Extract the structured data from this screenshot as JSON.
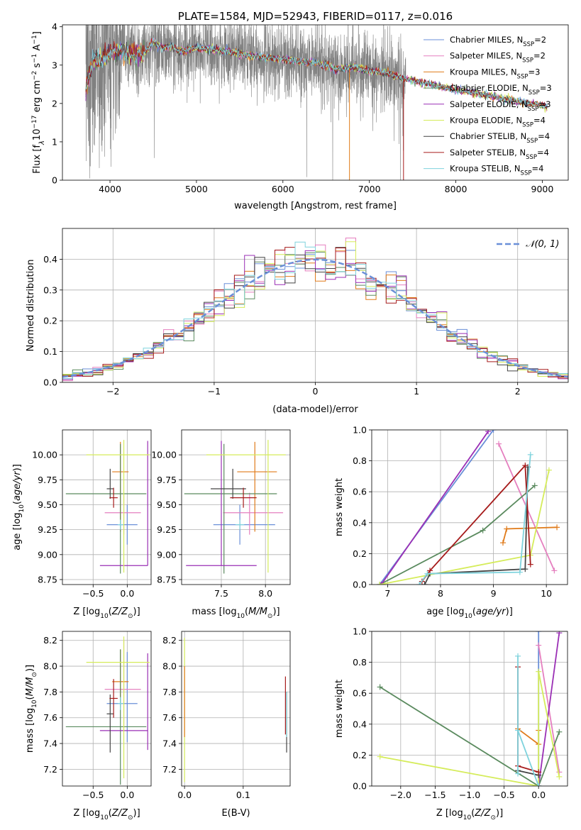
{
  "colors": {
    "chabrier_miles": "#6a8fd8",
    "salpeter_miles": "#e57fbf",
    "kroupa_miles": "#e07b1a",
    "chabrier_elodie": "#5a8a5e",
    "salpeter_elodie": "#9a2fb5",
    "kroupa_elodie": "#d5ec5a",
    "chabrier_stelib": "#444444",
    "salpeter_stelib": "#a61b1b",
    "kroupa_stelib": "#7fd3dd",
    "data": "#808080"
  },
  "chart_data": [
    {
      "id": "spectrum",
      "type": "line",
      "title": "PLATE=1584, MJD=52943, FIBERID=0117, z=0.016",
      "xlabel": "wavelength [Angstrom, rest frame]",
      "ylabel": "Flux [f",
      "xlim": [
        3450,
        9300
      ],
      "ylim": [
        0,
        4.05
      ],
      "xticks": [
        4000,
        5000,
        6000,
        7000,
        8000,
        9000
      ],
      "yticks": [
        0,
        1,
        2,
        3,
        4
      ],
      "legend_position": "top-right",
      "legend": [
        {
          "label": "Chabrier MILES, N",
          "sub": "SSP",
          "suffix": "=2",
          "color": "chabrier_miles"
        },
        {
          "label": "Salpeter MILES, N",
          "sub": "SSP",
          "suffix": "=2",
          "color": "salpeter_miles"
        },
        {
          "label": "Kroupa MILES, N",
          "sub": "SSP",
          "suffix": "=3",
          "color": "kroupa_miles"
        },
        {
          "label": "Chabrier ELODIE, N",
          "sub": "SSP",
          "suffix": "=3",
          "color": "chabrier_elodie"
        },
        {
          "label": "Salpeter ELODIE, N",
          "sub": "SSP",
          "suffix": "=3",
          "color": "salpeter_elodie"
        },
        {
          "label": "Kroupa ELODIE, N",
          "sub": "SSP",
          "suffix": "=4",
          "color": "kroupa_elodie"
        },
        {
          "label": "Chabrier STELIB, N",
          "sub": "SSP",
          "suffix": "=4",
          "color": "chabrier_stelib"
        },
        {
          "label": "Salpeter STELIB, N",
          "sub": "SSP",
          "suffix": "=4",
          "color": "salpeter_stelib"
        },
        {
          "label": "Kroupa STELIB, N",
          "sub": "SSP",
          "suffix": "=4",
          "color": "kroupa_stelib"
        }
      ],
      "model_curve": {
        "x": [
          3720,
          3800,
          3900,
          4000,
          4100,
          4200,
          4300,
          4400,
          4500,
          4600,
          4700,
          4800,
          4900,
          5000,
          5200,
          5400,
          5600,
          5800,
          6000,
          6200,
          6400,
          6600,
          6800,
          7000,
          7200,
          7400,
          7600,
          7800,
          8000,
          8200,
          8400,
          8600,
          8800,
          9000,
          9050
        ],
        "y": [
          2.4,
          3.1,
          3.2,
          3.3,
          3.4,
          3.35,
          3.25,
          3.35,
          3.6,
          3.45,
          3.5,
          3.35,
          3.4,
          3.45,
          3.4,
          3.35,
          3.25,
          3.2,
          3.15,
          3.1,
          3.05,
          2.9,
          2.95,
          2.85,
          2.8,
          2.65,
          2.55,
          2.45,
          2.35,
          2.28,
          2.2,
          2.1,
          2.02,
          1.95,
          1.9
        ]
      },
      "noisy_range": [
        3720,
        7420
      ]
    },
    {
      "id": "residuals",
      "type": "histogram",
      "xlabel": "(data-model)/error",
      "ylabel": "Normed distribution",
      "xlim": [
        -2.5,
        2.5
      ],
      "ylim": [
        0,
        0.5
      ],
      "xticks": [
        -2,
        -1,
        0,
        1,
        2
      ],
      "yticks": [
        0.0,
        0.1,
        0.2,
        0.3,
        0.4
      ],
      "legend": "𝒩(0, 1)",
      "bin_width": 0.1
    },
    {
      "id": "age_vs_Z",
      "type": "errorbar",
      "xlabel": "Z [log",
      "ylabel": "age  [log",
      "xlim": [
        -0.95,
        0.35
      ],
      "ylim": [
        8.7,
        10.25
      ],
      "xticks": [
        -0.5,
        0.0
      ],
      "yticks": [
        8.75,
        9.0,
        9.25,
        9.5,
        9.75,
        10.0
      ],
      "points": [
        {
          "c": "chabrier_miles",
          "x": 0.0,
          "xe": [
            0.3,
            0.15
          ],
          "y": 9.3,
          "ye": [
            0.2,
            0.2
          ]
        },
        {
          "c": "salpeter_miles",
          "x": -0.05,
          "xe": [
            0.28,
            0.25
          ],
          "y": 9.42,
          "ye": [
            0.22,
            0.2
          ]
        },
        {
          "c": "kroupa_miles",
          "x": -0.1,
          "xe": [
            0.12,
            0.12
          ],
          "y": 9.83,
          "ye": [
            0.6,
            0.3
          ]
        },
        {
          "c": "chabrier_elodie",
          "x": -0.1,
          "xe": [
            0.8,
            0.38
          ],
          "y": 9.61,
          "ye": [
            0.8,
            0.5
          ]
        },
        {
          "c": "salpeter_elodie",
          "x": 0.3,
          "xe": [
            0.7,
            0.0
          ],
          "y": 8.89,
          "ye": [
            0.0,
            1.25
          ]
        },
        {
          "c": "kroupa_elodie",
          "x": -0.05,
          "xe": [
            0.55,
            0.38
          ],
          "y": 10.0,
          "ye": [
            1.18,
            0.15
          ]
        },
        {
          "c": "chabrier_stelib",
          "x": -0.25,
          "xe": [
            0.05,
            0.05
          ],
          "y": 9.66,
          "ye": [
            0.1,
            0.2
          ]
        },
        {
          "c": "salpeter_stelib",
          "x": -0.2,
          "xe": [
            0.06,
            0.06
          ],
          "y": 9.57,
          "ye": [
            0.1,
            0.1
          ]
        },
        {
          "c": "kroupa_stelib",
          "x": -0.1,
          "xe": [
            0.04,
            0.04
          ],
          "y": 9.3,
          "ye": [
            0.05,
            0.05
          ]
        }
      ]
    },
    {
      "id": "age_vs_mass",
      "type": "errorbar",
      "xlabel": "mass [log",
      "xlim": [
        7.05,
        8.28
      ],
      "ylim": [
        8.7,
        10.25
      ],
      "xticks": [
        7.5,
        8.0
      ],
      "yticks": [
        8.75,
        9.0,
        9.25,
        9.5,
        9.75,
        10.0
      ],
      "points": [
        {
          "c": "chabrier_miles",
          "x": 7.71,
          "xe": [
            0.3,
            0.4
          ],
          "y": 9.3,
          "ye": [
            0.2,
            0.2
          ]
        },
        {
          "c": "salpeter_miles",
          "x": 7.82,
          "xe": [
            0.3,
            0.38
          ],
          "y": 9.42,
          "ye": [
            0.22,
            0.2
          ]
        },
        {
          "c": "kroupa_miles",
          "x": 7.88,
          "xe": [
            0.2,
            0.25
          ],
          "y": 9.83,
          "ye": [
            0.6,
            0.3
          ]
        },
        {
          "c": "chabrier_elodie",
          "x": 7.53,
          "xe": [
            0.45,
            0.6
          ],
          "y": 9.61,
          "ye": [
            0.8,
            0.5
          ]
        },
        {
          "c": "salpeter_elodie",
          "x": 7.5,
          "xe": [
            0.4,
            0.4
          ],
          "y": 8.89,
          "ye": [
            0.0,
            1.25
          ]
        },
        {
          "c": "kroupa_elodie",
          "x": 8.03,
          "xe": [
            0.7,
            0.2
          ],
          "y": 10.0,
          "ye": [
            1.18,
            0.15
          ]
        },
        {
          "c": "chabrier_stelib",
          "x": 7.63,
          "xe": [
            0.25,
            0.15
          ],
          "y": 9.66,
          "ye": [
            0.1,
            0.2
          ]
        },
        {
          "c": "salpeter_stelib",
          "x": 7.75,
          "xe": [
            0.15,
            0.15
          ],
          "y": 9.57,
          "ye": [
            0.1,
            0.1
          ]
        },
        {
          "c": "kroupa_stelib",
          "x": 7.71,
          "xe": [
            0.05,
            0.05
          ],
          "y": 9.3,
          "ye": [
            0.05,
            0.05
          ]
        }
      ]
    },
    {
      "id": "weight_vs_age",
      "type": "line",
      "xlabel": "age  [log",
      "ylabel": "mass weight",
      "xlim": [
        6.7,
        10.4
      ],
      "ylim": [
        0,
        1.0
      ],
      "xticks": [
        7,
        8,
        9,
        10
      ],
      "yticks": [
        0.0,
        0.2,
        0.4,
        0.6,
        0.8,
        1.0
      ],
      "series": [
        {
          "c": "chabrier_miles",
          "x": [
            6.85,
            9.0
          ],
          "y": [
            0.0,
            1.0
          ]
        },
        {
          "c": "salpeter_miles",
          "x": [
            9.1,
            10.15
          ],
          "y": [
            0.91,
            0.09
          ]
        },
        {
          "c": "kroupa_miles",
          "x": [
            9.18,
            9.25,
            10.2
          ],
          "y": [
            0.27,
            0.36,
            0.37
          ]
        },
        {
          "c": "chabrier_elodie",
          "x": [
            6.85,
            8.8,
            9.78
          ],
          "y": [
            0.0,
            0.35,
            0.64
          ]
        },
        {
          "c": "salpeter_elodie",
          "x": [
            6.88,
            8.9
          ],
          "y": [
            0.0,
            0.99
          ]
        },
        {
          "c": "kroupa_elodie",
          "x": [
            6.85,
            9.7,
            10.05
          ],
          "y": [
            0.0,
            0.19,
            0.74
          ]
        },
        {
          "c": "chabrier_stelib",
          "x": [
            7.7,
            7.8,
            9.6,
            9.65
          ],
          "y": [
            0.0,
            0.07,
            0.1,
            0.76
          ]
        },
        {
          "c": "salpeter_stelib",
          "x": [
            7.65,
            7.8,
            9.6,
            9.7
          ],
          "y": [
            0.02,
            0.09,
            0.77,
            0.13
          ]
        },
        {
          "c": "kroupa_stelib",
          "x": [
            7.6,
            7.75,
            9.5,
            9.7
          ],
          "y": [
            0.0,
            0.07,
            0.08,
            0.84
          ]
        }
      ]
    },
    {
      "id": "mass_vs_Z",
      "type": "errorbar",
      "xlabel": "Z [log",
      "ylabel": "mass [log",
      "xlim": [
        -0.95,
        0.35
      ],
      "ylim": [
        7.07,
        8.27
      ],
      "xticks": [
        -0.5,
        0.0
      ],
      "yticks": [
        7.2,
        7.4,
        7.6,
        7.8,
        8.0,
        8.2
      ],
      "points": [
        {
          "c": "chabrier_miles",
          "x": 0.0,
          "xe": [
            0.3,
            0.15
          ],
          "y": 7.71,
          "ye": [
            0.3,
            0.4
          ]
        },
        {
          "c": "salpeter_miles",
          "x": -0.05,
          "xe": [
            0.28,
            0.25
          ],
          "y": 7.82,
          "ye": [
            0.3,
            0.38
          ]
        },
        {
          "c": "kroupa_miles",
          "x": -0.1,
          "xe": [
            0.12,
            0.12
          ],
          "y": 7.88,
          "ye": [
            0.2,
            0.25
          ]
        },
        {
          "c": "chabrier_elodie",
          "x": -0.1,
          "xe": [
            0.8,
            0.38
          ],
          "y": 7.53,
          "ye": [
            0.45,
            0.6
          ]
        },
        {
          "c": "salpeter_elodie",
          "x": 0.3,
          "xe": [
            0.7,
            0.0
          ],
          "y": 7.5,
          "ye": [
            0.15,
            0.6
          ]
        },
        {
          "c": "kroupa_elodie",
          "x": -0.05,
          "xe": [
            0.55,
            0.38
          ],
          "y": 8.03,
          "ye": [
            0.9,
            0.2
          ]
        },
        {
          "c": "chabrier_stelib",
          "x": -0.25,
          "xe": [
            0.05,
            0.05
          ],
          "y": 7.63,
          "ye": [
            0.3,
            0.15
          ]
        },
        {
          "c": "salpeter_stelib",
          "x": -0.2,
          "xe": [
            0.06,
            0.06
          ],
          "y": 7.75,
          "ye": [
            0.15,
            0.15
          ]
        },
        {
          "c": "kroupa_stelib",
          "x": -0.1,
          "xe": [
            0.04,
            0.04
          ],
          "y": 7.71,
          "ye": [
            0.05,
            0.05
          ]
        }
      ]
    },
    {
      "id": "mass_vs_ebv",
      "type": "errorbar",
      "xlabel": "E(B-V)",
      "xlim": [
        -0.005,
        0.18
      ],
      "ylim": [
        7.07,
        8.27
      ],
      "xticks": [
        0.0,
        0.1
      ],
      "yticks": [
        7.2,
        7.4,
        7.6,
        7.8,
        8.0,
        8.2
      ],
      "points": [
        {
          "c": "kroupa_elodie",
          "x": 0.0,
          "xe": [
            0.0,
            0.0
          ],
          "y": 7.7,
          "ye": [
            0.6,
            0.52
          ]
        },
        {
          "c": "kroupa_miles",
          "x": 0.0,
          "xe": [
            0.0,
            0.0
          ],
          "y": 7.7,
          "ye": [
            0.25,
            0.3
          ]
        },
        {
          "c": "salpeter_stelib",
          "x": 0.172,
          "xe": [
            0.0,
            0.0
          ],
          "y": 7.7,
          "ye": [
            0.23,
            0.22
          ]
        },
        {
          "c": "chabrier_stelib",
          "x": 0.174,
          "xe": [
            0.0,
            0.0
          ],
          "y": 7.55,
          "ye": [
            0.22,
            0.25
          ]
        },
        {
          "c": "kroupa_stelib",
          "x": 0.174,
          "xe": [
            0.0,
            0.0
          ],
          "y": 7.6,
          "ye": [
            0.15,
            0.2
          ]
        }
      ]
    },
    {
      "id": "weight_vs_Z",
      "type": "line",
      "xlabel": "Z [log",
      "ylabel": "mass weight",
      "xlim": [
        -2.42,
        0.42
      ],
      "ylim": [
        0,
        1.0
      ],
      "xticks": [
        -2.0,
        -1.5,
        -1.0,
        -0.5,
        0.0
      ],
      "yticks": [
        0.0,
        0.2,
        0.4,
        0.6,
        0.8,
        1.0
      ],
      "series": [
        {
          "c": "chabrier_miles",
          "x": [
            0.0,
            0.0
          ],
          "y": [
            0.0,
            1.0
          ]
        },
        {
          "c": "salpeter_miles",
          "x": [
            0.0,
            0.3
          ],
          "y": [
            0.91,
            0.09
          ]
        },
        {
          "c": "kroupa_miles",
          "x": [
            -0.3,
            0.0,
            0.0
          ],
          "y": [
            0.37,
            0.27,
            0.36
          ]
        },
        {
          "c": "chabrier_elodie",
          "x": [
            -2.3,
            0.0,
            0.3
          ],
          "y": [
            0.64,
            0.0,
            0.35
          ]
        },
        {
          "c": "salpeter_elodie",
          "x": [
            0.0,
            0.3
          ],
          "y": [
            0.0,
            0.99
          ]
        },
        {
          "c": "kroupa_elodie",
          "x": [
            -2.3,
            0.0,
            0.0,
            0.3
          ],
          "y": [
            0.19,
            0.0,
            0.74,
            0.06
          ]
        },
        {
          "c": "chabrier_stelib",
          "x": [
            -0.3,
            0.0
          ],
          "y": [
            0.1,
            0.07
          ]
        },
        {
          "c": "salpeter_stelib",
          "x": [
            -0.3,
            -0.3,
            0.0
          ],
          "y": [
            0.77,
            0.13,
            0.09
          ]
        },
        {
          "c": "kroupa_stelib",
          "x": [
            -0.3,
            -0.3,
            -0.3,
            0.0
          ],
          "y": [
            0.84,
            0.08,
            0.36,
            0.0
          ]
        }
      ]
    }
  ]
}
